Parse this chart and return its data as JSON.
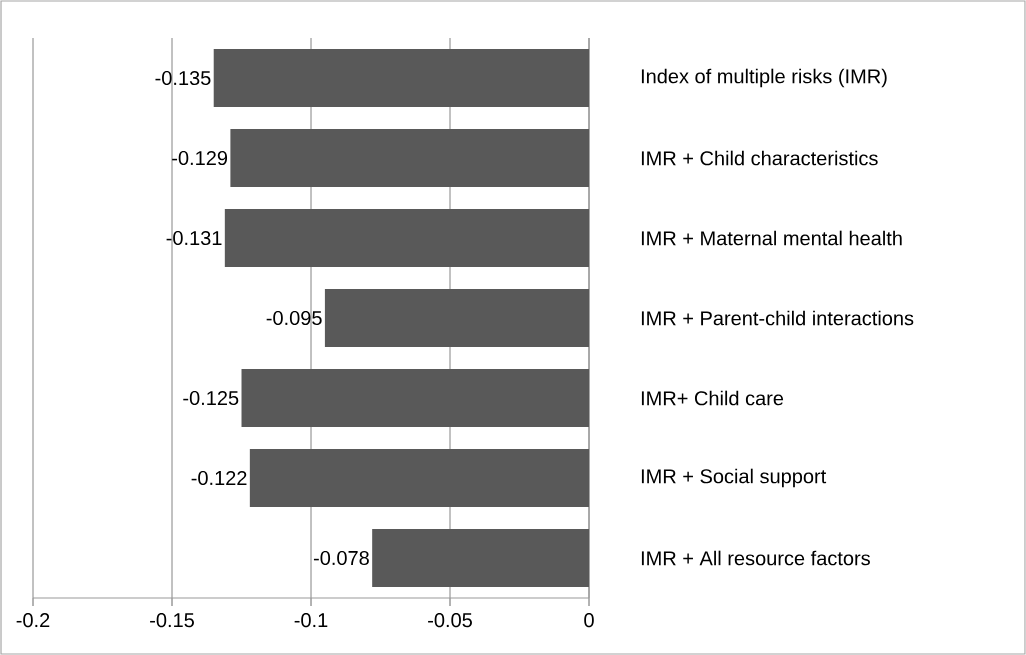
{
  "chart_data": {
    "type": "bar",
    "orientation": "horizontal",
    "categories": [
      "Index of multiple risks (IMR)",
      "IMR + Child characteristics",
      "IMR + Maternal mental health",
      "IMR + Parent-child interactions",
      "IMR+ Child care",
      "IMR + Social support",
      "IMR + All resource factors"
    ],
    "values": [
      -0.135,
      -0.129,
      -0.131,
      -0.095,
      -0.125,
      -0.122,
      -0.078
    ],
    "color": "#595959",
    "xlim": [
      -0.2,
      0
    ],
    "xticks": [
      -0.2,
      -0.15,
      -0.1,
      -0.05,
      0
    ],
    "grid": "x",
    "data_labels": true
  }
}
